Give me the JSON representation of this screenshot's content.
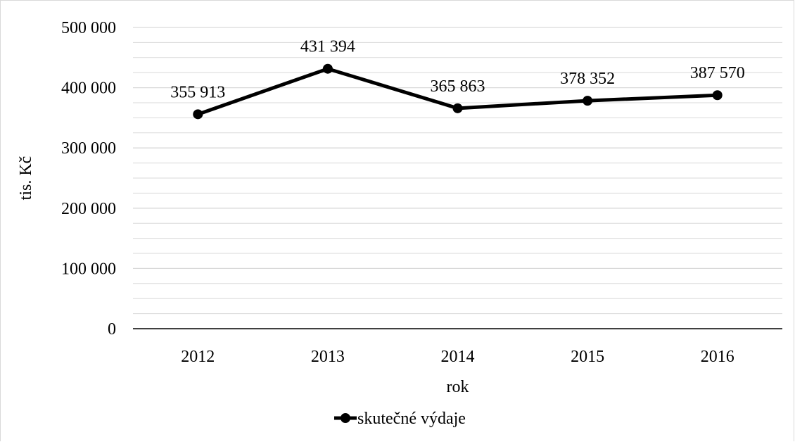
{
  "chart_data": {
    "type": "line",
    "title": "",
    "xlabel": "rok",
    "ylabel": "tis. Kč",
    "categories": [
      "2012",
      "2013",
      "2014",
      "2015",
      "2016"
    ],
    "series": [
      {
        "name": "skutečné výdaje",
        "values": [
          355913,
          431394,
          365863,
          378352,
          387570
        ],
        "labels": [
          "355 913",
          "431 394",
          "365 863",
          "378 352",
          "387 570"
        ],
        "color": "#000000"
      }
    ],
    "ylim": [
      0,
      500000
    ],
    "yticks": [
      0,
      100000,
      200000,
      300000,
      400000,
      500000
    ],
    "ytick_labels": [
      "0",
      "100 000",
      "200 000",
      "300 000",
      "400 000",
      "500 000"
    ],
    "minor_gridlines": true,
    "grid": true,
    "legend_position": "bottom",
    "gridline_color": "#d9d9d9"
  }
}
